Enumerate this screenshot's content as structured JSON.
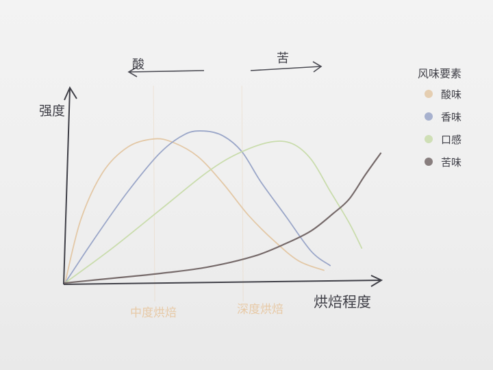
{
  "chart_data": {
    "type": "line",
    "ylabel": "强度",
    "xlabel": "烘焙程度",
    "arrows": {
      "left": "酸",
      "right": "苦"
    },
    "roast_markers": [
      {
        "label": "中度烘焙",
        "x": 0.28,
        "color": "#e7c9a6"
      },
      {
        "label": "深度烘焙",
        "x": 0.56,
        "color": "#e7c9a6"
      }
    ],
    "legend": {
      "title": "风味要素",
      "placement": "right"
    },
    "x_range": [
      0,
      1
    ],
    "y_range": [
      0,
      1
    ],
    "grid": false,
    "series": [
      {
        "name": "酸味",
        "color": "#e3c8a6",
        "x": [
          0.0,
          0.05,
          0.12,
          0.2,
          0.28,
          0.34,
          0.42,
          0.5,
          0.58,
          0.66,
          0.74,
          0.82
        ],
        "y": [
          0.0,
          0.4,
          0.7,
          0.86,
          0.91,
          0.89,
          0.8,
          0.63,
          0.43,
          0.27,
          0.14,
          0.08
        ]
      },
      {
        "name": "香味",
        "color": "#9aa6c8",
        "x": [
          0.0,
          0.1,
          0.2,
          0.3,
          0.38,
          0.44,
          0.5,
          0.56,
          0.62,
          0.7,
          0.78,
          0.84
        ],
        "y": [
          0.0,
          0.3,
          0.58,
          0.82,
          0.94,
          0.96,
          0.93,
          0.83,
          0.64,
          0.42,
          0.2,
          0.11
        ]
      },
      {
        "name": "口感",
        "color": "#c9dcac",
        "x": [
          0.0,
          0.15,
          0.3,
          0.45,
          0.55,
          0.65,
          0.72,
          0.78,
          0.84,
          0.9,
          0.94
        ],
        "y": [
          0.0,
          0.22,
          0.46,
          0.7,
          0.82,
          0.89,
          0.88,
          0.78,
          0.58,
          0.38,
          0.22
        ]
      },
      {
        "name": "苦味",
        "color": "#766a6a",
        "x": [
          0.0,
          0.15,
          0.3,
          0.45,
          0.6,
          0.7,
          0.78,
          0.85,
          0.9,
          0.95,
          1.0
        ],
        "y": [
          0.0,
          0.03,
          0.06,
          0.1,
          0.17,
          0.25,
          0.33,
          0.44,
          0.53,
          0.68,
          0.82
        ]
      }
    ]
  }
}
